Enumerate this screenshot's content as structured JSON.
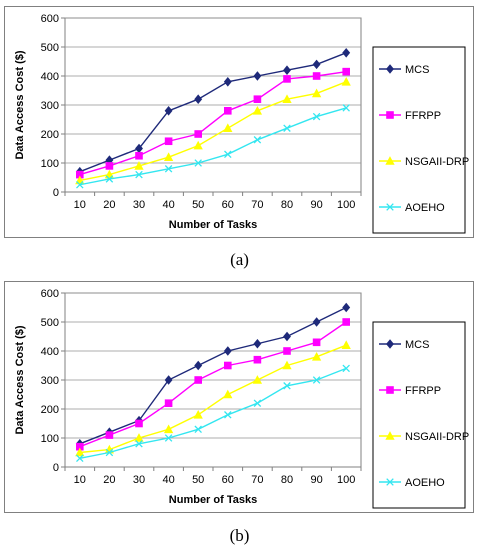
{
  "chart_data": [
    {
      "type": "line",
      "caption": "(a)",
      "xlabel": "Number of Tasks",
      "ylabel": "Data Access Cost ($)",
      "x": [
        10,
        20,
        30,
        40,
        50,
        60,
        70,
        80,
        90,
        100
      ],
      "ylim": [
        0,
        600
      ],
      "yticks": [
        0,
        100,
        200,
        300,
        400,
        500,
        600
      ],
      "grid": true,
      "legend_position": "right",
      "series": [
        {
          "name": "MCS",
          "color": "#1f2a7a",
          "marker": "diamond",
          "values": [
            70,
            110,
            150,
            280,
            320,
            380,
            400,
            420,
            440,
            480
          ]
        },
        {
          "name": "FFRPP",
          "color": "#ff00ff",
          "marker": "square",
          "values": [
            60,
            90,
            125,
            175,
            200,
            280,
            320,
            390,
            400,
            415
          ]
        },
        {
          "name": "NSGAII-DRP",
          "color": "#ffff00",
          "marker": "triangle",
          "values": [
            40,
            60,
            90,
            120,
            160,
            220,
            280,
            320,
            340,
            380
          ]
        },
        {
          "name": "AOEHO",
          "color": "#33e6f0",
          "marker": "x",
          "values": [
            25,
            45,
            60,
            80,
            100,
            130,
            180,
            220,
            260,
            290
          ]
        }
      ]
    },
    {
      "type": "line",
      "caption": "(b)",
      "xlabel": "Number of Tasks",
      "ylabel": "Data Access Cost ($)",
      "x": [
        10,
        20,
        30,
        40,
        50,
        60,
        70,
        80,
        90,
        100
      ],
      "ylim": [
        0,
        600
      ],
      "yticks": [
        0,
        100,
        200,
        300,
        400,
        500,
        600
      ],
      "grid": true,
      "legend_position": "right",
      "series": [
        {
          "name": "MCS",
          "color": "#1f2a7a",
          "marker": "diamond",
          "values": [
            80,
            120,
            160,
            300,
            350,
            400,
            425,
            450,
            500,
            550
          ]
        },
        {
          "name": "FFRPP",
          "color": "#ff00ff",
          "marker": "square",
          "values": [
            70,
            110,
            150,
            220,
            300,
            350,
            370,
            400,
            430,
            500
          ]
        },
        {
          "name": "NSGAII-DRP",
          "color": "#ffff00",
          "marker": "triangle",
          "values": [
            50,
            60,
            100,
            130,
            180,
            250,
            300,
            350,
            380,
            420
          ]
        },
        {
          "name": "AOEHO",
          "color": "#33e6f0",
          "marker": "x",
          "values": [
            30,
            50,
            80,
            100,
            130,
            180,
            220,
            280,
            300,
            340
          ]
        }
      ]
    }
  ]
}
